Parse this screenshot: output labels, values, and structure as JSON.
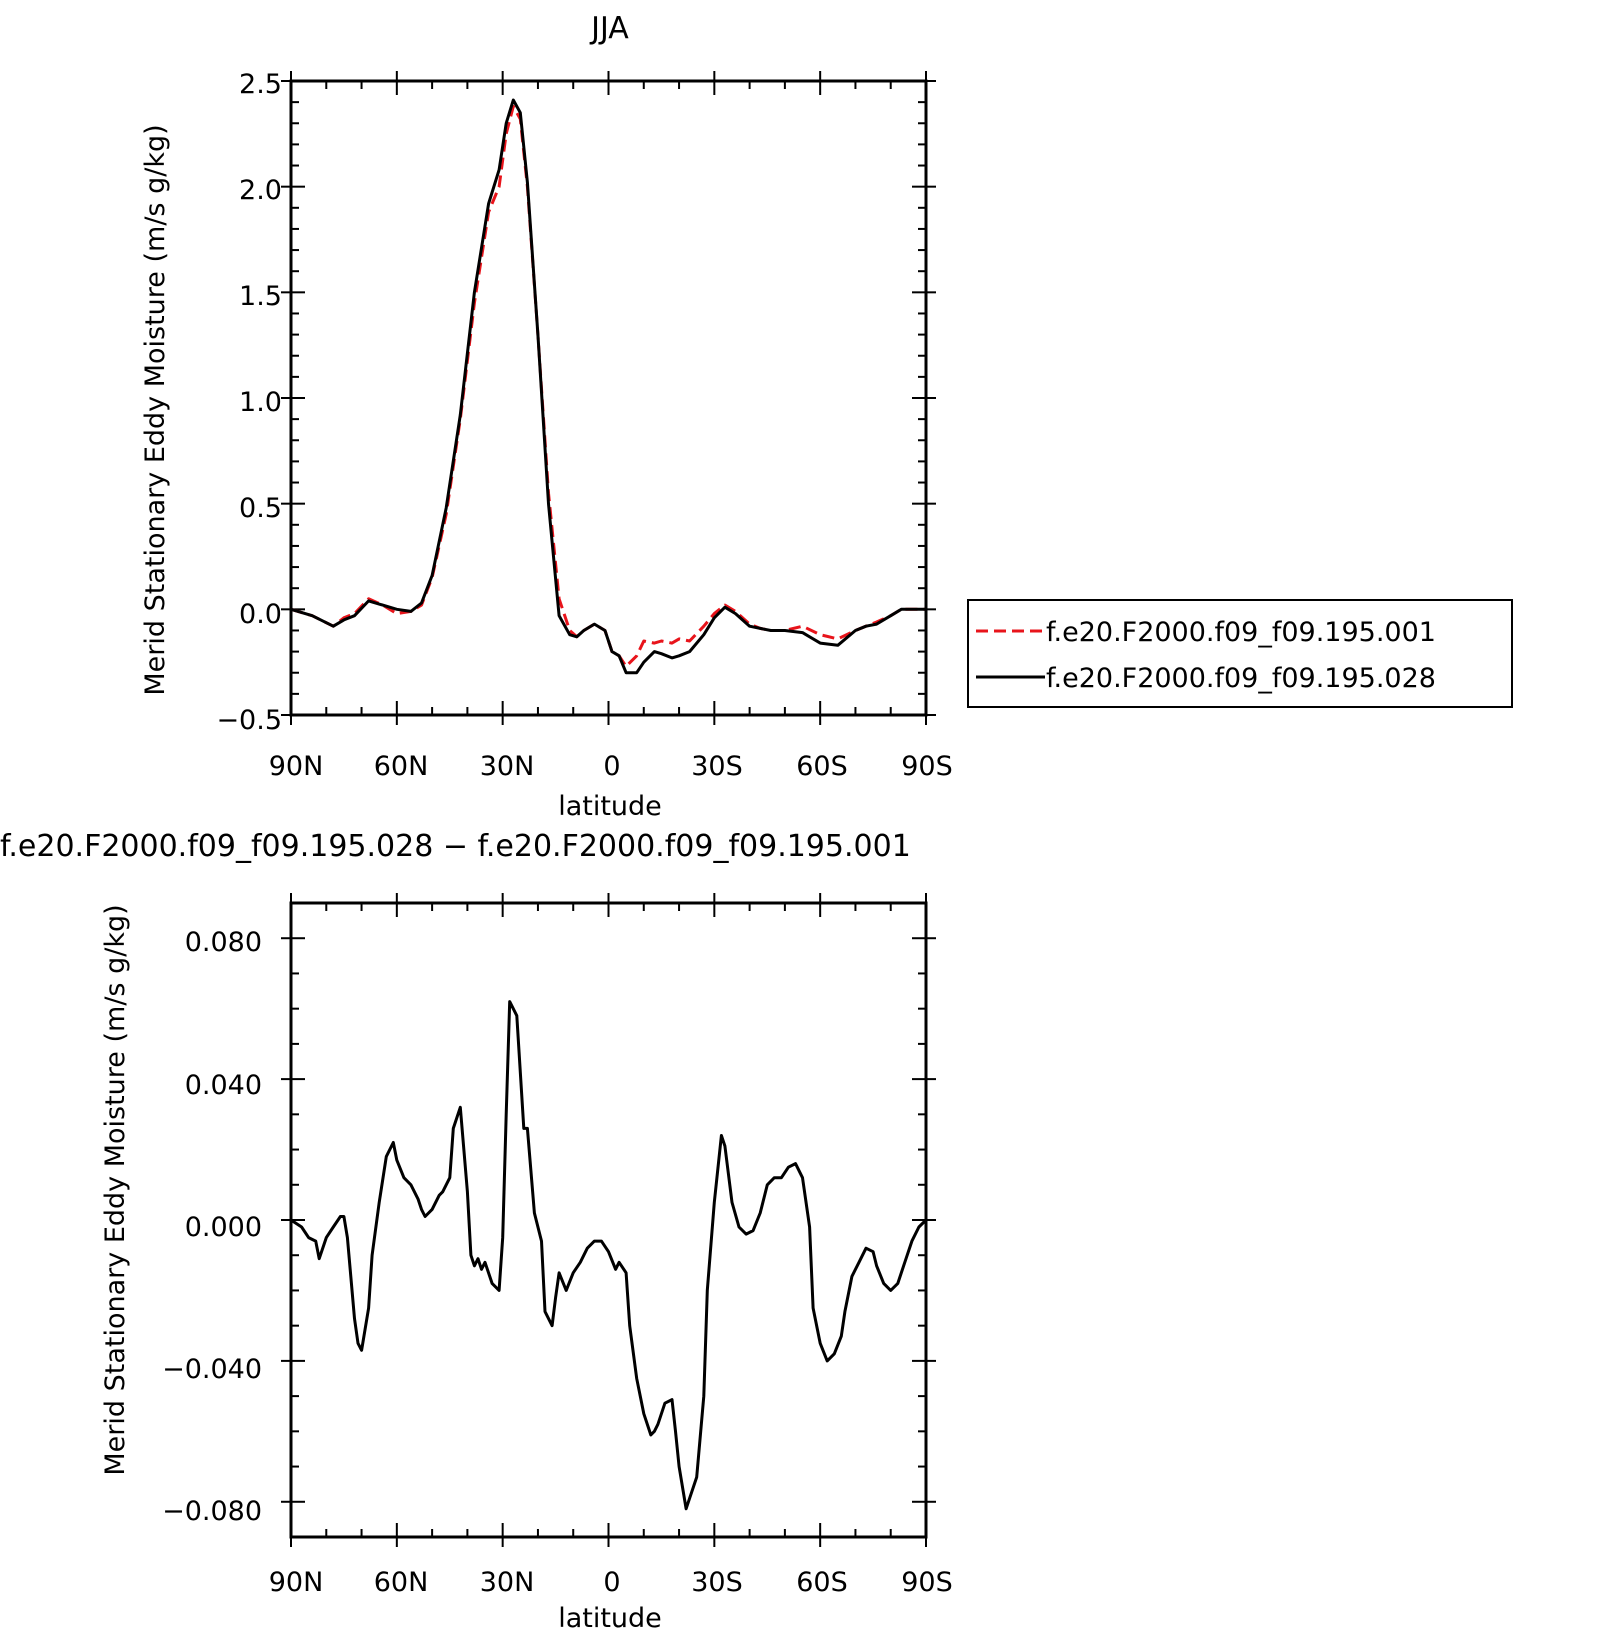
{
  "panels": [
    {
      "title": "JJA",
      "ylabel": "Merid Stationary Eddy Moisture (m/s g/kg)",
      "xlabel": "latitude",
      "xticks": [
        "90N",
        "60N",
        "30N",
        "0",
        "30S",
        "60S",
        "90S"
      ],
      "yticks": [
        "2.5",
        "2.0",
        "1.5",
        "1.0",
        "0.5",
        "0.0",
        "−0.5"
      ],
      "legend": [
        "f.e20.F2000.f09_f09.195.001",
        "f.e20.F2000.f09_f09.195.028"
      ]
    },
    {
      "title": "f.e20.F2000.f09_f09.195.028 − f.e20.F2000.f09_f09.195.001",
      "ylabel": "Merid Stationary Eddy Moisture (m/s g/kg)",
      "xlabel": "latitude",
      "xticks": [
        "90N",
        "60N",
        "30N",
        "0",
        "30S",
        "60S",
        "90S"
      ],
      "yticks": [
        "0.080",
        "0.040",
        "0.000",
        "−0.040",
        "−0.080"
      ]
    }
  ],
  "chart_data": [
    {
      "type": "line",
      "title": "JJA",
      "xlabel": "latitude",
      "ylabel": "Merid Stationary Eddy Moisture (m/s g/kg)",
      "xlim": [
        90,
        -90
      ],
      "ylim": [
        -0.5,
        2.5
      ],
      "legend_position": "right",
      "series": [
        {
          "name": "f.e20.F2000.f09_f09.195.001",
          "color": "#e8141b",
          "style": "dashed",
          "x": [
            90,
            84,
            78,
            75,
            72,
            68,
            64,
            60,
            56,
            53,
            50,
            46,
            42,
            38,
            34,
            31,
            29,
            27,
            25,
            23,
            20,
            17,
            14,
            11,
            9,
            7,
            4,
            1,
            -1,
            -3,
            -5,
            -8,
            -10,
            -13,
            -15,
            -18,
            -20,
            -23,
            -27,
            -30,
            -33,
            -36,
            -40,
            -43,
            -46,
            -50,
            -55,
            -60,
            -65,
            -70,
            -73,
            -76,
            -80,
            -83,
            -87,
            -90
          ],
          "y": [
            0.0,
            -0.03,
            -0.08,
            -0.04,
            -0.02,
            0.05,
            0.02,
            -0.02,
            -0.01,
            0.02,
            0.15,
            0.45,
            0.9,
            1.45,
            1.88,
            2.0,
            2.25,
            2.38,
            2.32,
            2.0,
            1.3,
            0.55,
            0.05,
            -0.1,
            -0.13,
            -0.1,
            -0.07,
            -0.1,
            -0.2,
            -0.22,
            -0.27,
            -0.22,
            -0.15,
            -0.16,
            -0.15,
            -0.16,
            -0.14,
            -0.15,
            -0.08,
            -0.02,
            0.02,
            -0.01,
            -0.07,
            -0.09,
            -0.1,
            -0.1,
            -0.08,
            -0.12,
            -0.14,
            -0.1,
            -0.08,
            -0.06,
            -0.03,
            0.0,
            0.0,
            0.0
          ]
        },
        {
          "name": "f.e20.F2000.f09_f09.195.028",
          "color": "#000000",
          "style": "solid",
          "x": [
            90,
            84,
            78,
            75,
            72,
            68,
            64,
            60,
            56,
            53,
            50,
            46,
            42,
            38,
            34,
            31,
            29,
            27,
            25,
            23,
            20,
            17,
            14,
            11,
            9,
            7,
            4,
            1,
            -1,
            -3,
            -5,
            -8,
            -10,
            -13,
            -15,
            -18,
            -20,
            -23,
            -27,
            -30,
            -33,
            -36,
            -40,
            -43,
            -46,
            -50,
            -55,
            -60,
            -65,
            -70,
            -73,
            -76,
            -80,
            -83,
            -87,
            -90
          ],
          "y": [
            0.0,
            -0.03,
            -0.08,
            -0.05,
            -0.03,
            0.04,
            0.02,
            0.0,
            -0.01,
            0.03,
            0.16,
            0.48,
            0.92,
            1.5,
            1.92,
            2.08,
            2.3,
            2.41,
            2.35,
            2.02,
            1.3,
            0.5,
            -0.03,
            -0.12,
            -0.13,
            -0.1,
            -0.07,
            -0.1,
            -0.2,
            -0.22,
            -0.3,
            -0.3,
            -0.25,
            -0.2,
            -0.21,
            -0.23,
            -0.22,
            -0.2,
            -0.12,
            -0.04,
            0.01,
            -0.02,
            -0.08,
            -0.09,
            -0.1,
            -0.1,
            -0.11,
            -0.16,
            -0.17,
            -0.1,
            -0.08,
            -0.07,
            -0.03,
            0.0,
            0.0,
            0.0
          ]
        }
      ]
    },
    {
      "type": "line",
      "title": "f.e20.F2000.f09_f09.195.028 − f.e20.F2000.f09_f09.195.001",
      "xlabel": "latitude",
      "ylabel": "Merid Stationary Eddy Moisture (m/s g/kg)",
      "xlim": [
        90,
        -90
      ],
      "ylim": [
        -0.09,
        0.09
      ],
      "series": [
        {
          "color": "#000000",
          "style": "solid",
          "x": [
            90,
            87,
            85,
            83,
            82,
            80,
            78,
            76,
            75,
            74,
            72,
            71,
            70,
            68,
            67,
            65,
            63,
            61,
            60,
            58,
            56,
            54,
            53,
            52,
            50,
            48,
            47,
            45,
            44,
            42,
            40,
            39,
            38,
            37,
            36,
            35,
            33,
            31,
            30,
            29,
            28,
            26,
            24,
            23,
            21,
            19,
            18,
            16,
            15,
            14,
            12,
            10,
            8,
            6,
            4,
            2,
            0,
            -2,
            -3,
            -5,
            -6,
            -8,
            -10,
            -12,
            -13,
            -14,
            -16,
            -18,
            -19,
            -20,
            -22,
            -23,
            -25,
            -27,
            -28,
            -30,
            -32,
            -33,
            -35,
            -37,
            -39,
            -41,
            -43,
            -45,
            -47,
            -49,
            -51,
            -53,
            -55,
            -57,
            -58,
            -60,
            -62,
            -64,
            -66,
            -67,
            -69,
            -71,
            -73,
            -75,
            -76,
            -78,
            -80,
            -82,
            -84,
            -86,
            -88,
            -90
          ],
          "y": [
            0.0,
            -0.002,
            -0.005,
            -0.006,
            -0.011,
            -0.005,
            -0.002,
            0.001,
            0.001,
            -0.005,
            -0.028,
            -0.035,
            -0.037,
            -0.025,
            -0.01,
            0.005,
            0.018,
            0.022,
            0.017,
            0.012,
            0.01,
            0.006,
            0.003,
            0.001,
            0.003,
            0.007,
            0.008,
            0.012,
            0.026,
            0.032,
            0.008,
            -0.01,
            -0.013,
            -0.011,
            -0.014,
            -0.012,
            -0.018,
            -0.02,
            -0.005,
            0.03,
            0.062,
            0.058,
            0.026,
            0.026,
            0.002,
            -0.006,
            -0.026,
            -0.03,
            -0.022,
            -0.015,
            -0.02,
            -0.015,
            -0.012,
            -0.008,
            -0.006,
            -0.006,
            -0.009,
            -0.014,
            -0.012,
            -0.015,
            -0.03,
            -0.045,
            -0.055,
            -0.061,
            -0.06,
            -0.058,
            -0.052,
            -0.051,
            -0.06,
            -0.07,
            -0.082,
            -0.079,
            -0.073,
            -0.05,
            -0.02,
            0.005,
            0.024,
            0.021,
            0.005,
            -0.002,
            -0.004,
            -0.003,
            0.002,
            0.01,
            0.012,
            0.012,
            0.015,
            0.016,
            0.012,
            -0.002,
            -0.025,
            -0.035,
            -0.04,
            -0.038,
            -0.033,
            -0.026,
            -0.016,
            -0.012,
            -0.008,
            -0.009,
            -0.013,
            -0.018,
            -0.02,
            -0.018,
            -0.012,
            -0.006,
            -0.002,
            0.0
          ]
        }
      ]
    }
  ]
}
